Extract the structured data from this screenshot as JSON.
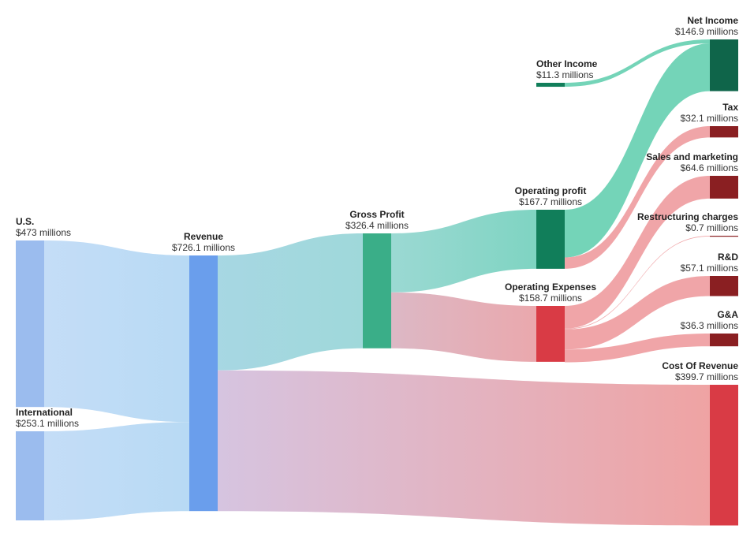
{
  "chart_data": {
    "type": "sankey",
    "unit_suffix": " millions",
    "currency": "$",
    "nodes": [
      {
        "id": "us",
        "name": "U.S.",
        "value": 473,
        "value_label": "$473 millions",
        "color": "#9bbcee"
      },
      {
        "id": "intl",
        "name": "International",
        "value": 253.1,
        "value_label": "$253.1 millions",
        "color": "#9bbcee"
      },
      {
        "id": "revenue",
        "name": "Revenue",
        "value": 726.1,
        "value_label": "$726.1 millions",
        "color": "#6a9eec"
      },
      {
        "id": "gross",
        "name": "Gross Profit",
        "value": 326.4,
        "value_label": "$326.4 millions",
        "color": "#3aae88"
      },
      {
        "id": "cor",
        "name": "Cost Of Revenue",
        "value": 399.7,
        "value_label": "$399.7 millions",
        "color": "#d93b45"
      },
      {
        "id": "opprofit",
        "name": "Operating profit",
        "value": 167.7,
        "value_label": "$167.7 millions",
        "color": "#117e5a"
      },
      {
        "id": "opex",
        "name": "Operating Expenses",
        "value": 158.7,
        "value_label": "$158.7 millions",
        "color": "#d93b45"
      },
      {
        "id": "other",
        "name": "Other Income",
        "value": 11.3,
        "value_label": "$11.3 millions",
        "color": "#117e5a"
      },
      {
        "id": "net",
        "name": "Net Income",
        "value": 146.9,
        "value_label": "$146.9 millions",
        "color": "#0f654a"
      },
      {
        "id": "tax",
        "name": "Tax",
        "value": 32.1,
        "value_label": "$32.1 millions",
        "color": "#8a1f22"
      },
      {
        "id": "sales",
        "name": "Sales and marketing",
        "value": 64.6,
        "value_label": "$64.6 millions",
        "color": "#8a1f22"
      },
      {
        "id": "restr",
        "name": "Restructuring charges",
        "value": 0.7,
        "value_label": "$0.7 millions",
        "color": "#8a1f22"
      },
      {
        "id": "rnd",
        "name": "R&D",
        "value": 57.1,
        "value_label": "$57.1 millions",
        "color": "#8a1f22"
      },
      {
        "id": "ga",
        "name": "G&A",
        "value": 36.3,
        "value_label": "$36.3 millions",
        "color": "#8a1f22"
      }
    ],
    "links": [
      {
        "source": "us",
        "target": "revenue",
        "value": 473
      },
      {
        "source": "intl",
        "target": "revenue",
        "value": 253.1
      },
      {
        "source": "revenue",
        "target": "gross",
        "value": 326.4
      },
      {
        "source": "revenue",
        "target": "cor",
        "value": 399.7
      },
      {
        "source": "gross",
        "target": "opprofit",
        "value": 167.7
      },
      {
        "source": "gross",
        "target": "opex",
        "value": 158.7
      },
      {
        "source": "other",
        "target": "net",
        "value": 11.3
      },
      {
        "source": "opprofit",
        "target": "net",
        "value": 135.6
      },
      {
        "source": "opprofit",
        "target": "tax",
        "value": 32.1
      },
      {
        "source": "opex",
        "target": "sales",
        "value": 64.6
      },
      {
        "source": "opex",
        "target": "restr",
        "value": 0.7
      },
      {
        "source": "opex",
        "target": "rnd",
        "value": 57.1
      },
      {
        "source": "opex",
        "target": "ga",
        "value": 36.3
      }
    ]
  }
}
